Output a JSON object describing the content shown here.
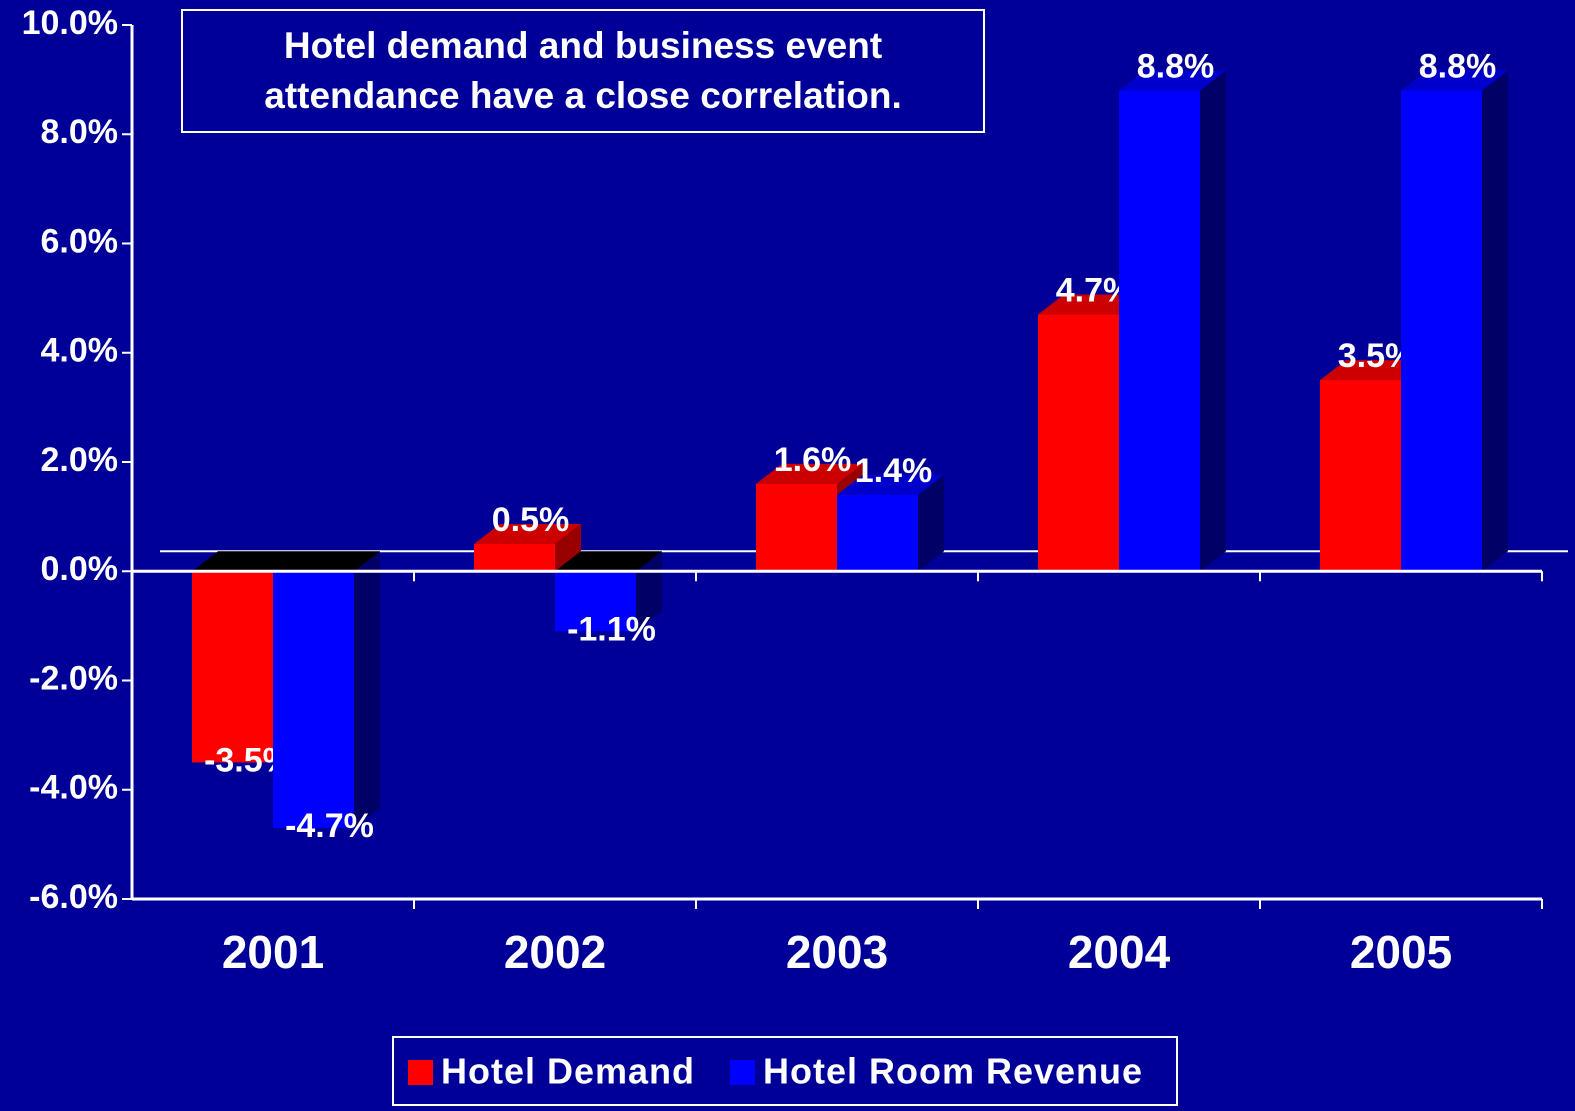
{
  "chart_data": {
    "type": "bar3d",
    "title": "Hotel demand and business event attendance have a close correlation.",
    "categories": [
      "2001",
      "2002",
      "2003",
      "2004",
      "2005"
    ],
    "series": [
      {
        "name": "Hotel Demand",
        "color": "#ff0000",
        "values": [
          -3.5,
          0.5,
          1.6,
          4.7,
          3.5
        ],
        "value_labels": [
          "-3.5%",
          "0.5%",
          "1.6%",
          "4.7%",
          "3.5%"
        ]
      },
      {
        "name": "Hotel Room Revenue",
        "color": "#0000ff",
        "values": [
          -4.7,
          -1.1,
          1.4,
          8.8,
          8.8
        ],
        "value_labels": [
          "-4.7%",
          "-1.1%",
          "1.4%",
          "8.8%",
          "8.8%"
        ]
      }
    ],
    "ylim": [
      -6,
      10
    ],
    "yticks": [
      {
        "value": -6,
        "label": "-6.0%"
      },
      {
        "value": -4,
        "label": "-4.0%"
      },
      {
        "value": -2,
        "label": "-2.0%"
      },
      {
        "value": 0,
        "label": "0.0%"
      },
      {
        "value": 2,
        "label": "2.0%"
      },
      {
        "value": 4,
        "label": "4.0%"
      },
      {
        "value": 6,
        "label": "6.0%"
      },
      {
        "value": 8,
        "label": "8.0%"
      },
      {
        "value": 10,
        "label": "10.0%"
      }
    ],
    "grid": false,
    "legend": "bottom"
  }
}
